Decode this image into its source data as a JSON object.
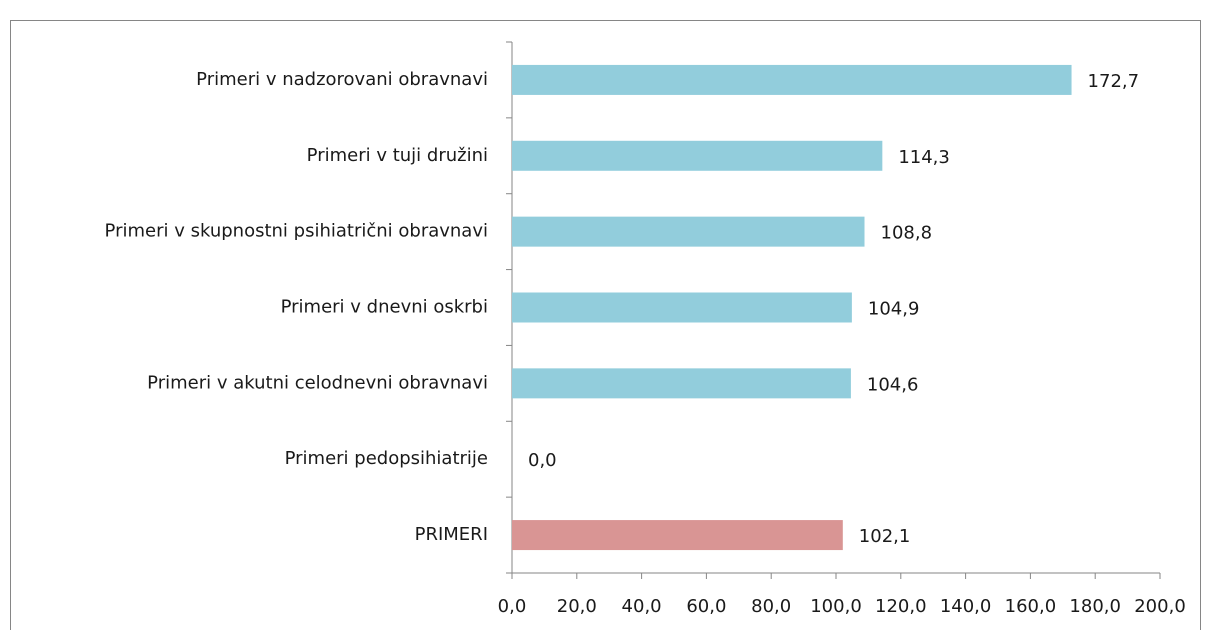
{
  "chart_data": {
    "type": "barh",
    "categories": [
      "Primeri v nadzorovani obravnavi",
      "Primeri v tuji družini",
      "Primeri v skupnostni psihiatrični obravnavi",
      "Primeri v dnevni oskrbi",
      "Primeri v akutni celodnevni obravnavi",
      "Primeri pedopsihiatrije",
      "PRIMERI"
    ],
    "values": [
      172.7,
      114.3,
      108.8,
      104.9,
      104.6,
      0.0,
      102.1
    ],
    "value_labels": [
      "172,7",
      "114,3",
      "108,8",
      "104,9",
      "104,6",
      "0,0",
      "102,1"
    ],
    "colors": [
      "#92cddc",
      "#92cddc",
      "#92cddc",
      "#92cddc",
      "#92cddc",
      "#92cddc",
      "#d99594"
    ],
    "xlim": [
      0,
      200
    ],
    "xticks": [
      {
        "value": 0,
        "label": "0,0"
      },
      {
        "value": 20,
        "label": "20,0"
      },
      {
        "value": 40,
        "label": "40,0"
      },
      {
        "value": 60,
        "label": "60,0"
      },
      {
        "value": 80,
        "label": "80,0"
      },
      {
        "value": 100,
        "label": "100,0"
      },
      {
        "value": 120,
        "label": "120,0"
      },
      {
        "value": 140,
        "label": "140,0"
      },
      {
        "value": 160,
        "label": "160,0"
      },
      {
        "value": 180,
        "label": "180,0"
      },
      {
        "value": 200,
        "label": "200,0"
      }
    ],
    "grid": false
  }
}
